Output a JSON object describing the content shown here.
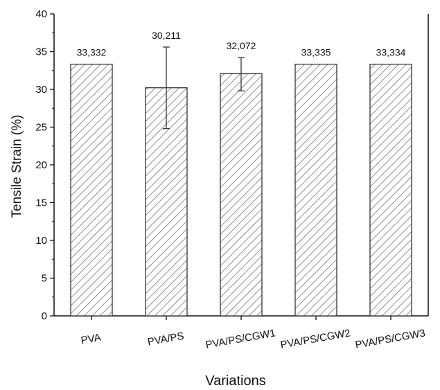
{
  "chart_data": {
    "type": "bar",
    "title": "",
    "xlabel": "Variations",
    "ylabel": "Tensile Strain (%)",
    "categories": [
      "PVA",
      "PVA/PS",
      "PVA/PS/CGW1",
      "PVA/PS/CGW2",
      "PVA/PS/CGW3"
    ],
    "values": [
      33.332,
      30.211,
      32.072,
      33.335,
      33.334
    ],
    "value_labels": [
      "33,332",
      "30,211",
      "32,072",
      "33,335",
      "33,334"
    ],
    "error_bars": [
      null,
      [
        24.8,
        35.6
      ],
      [
        29.8,
        34.2
      ],
      null,
      null
    ],
    "ylim": [
      0,
      40
    ],
    "yticks": [
      0,
      5,
      10,
      15,
      20,
      25,
      30,
      35,
      40
    ],
    "grid": false,
    "bar_fill": "diagonal-hatch",
    "colors": {
      "bar_stroke": "#333333",
      "hatch": "#555555",
      "axis": "#111111"
    }
  }
}
